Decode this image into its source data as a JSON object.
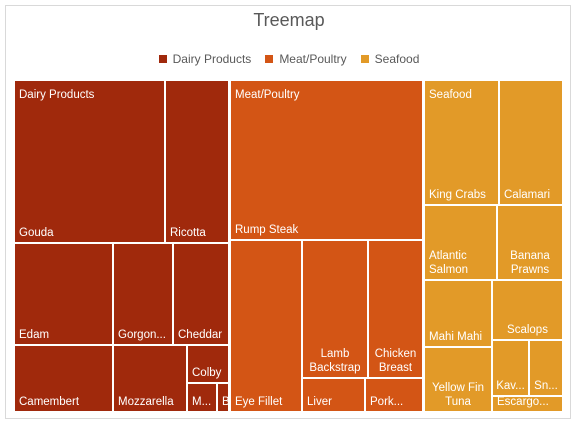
{
  "chart_data": {
    "type": "treemap",
    "title": "Treemap",
    "legend_position": "top",
    "groups": [
      {
        "name": "Dairy Products",
        "color": "#a0290c",
        "items": [
          {
            "name": "Gouda",
            "value": 34
          },
          {
            "name": "Ricotta",
            "value": 14
          },
          {
            "name": "Edam",
            "value": 12
          },
          {
            "name": "Gorgon...",
            "value": 7
          },
          {
            "name": "Cheddar",
            "value": 6.5
          },
          {
            "name": "Camembert",
            "value": 8
          },
          {
            "name": "Mozzarella",
            "value": 5
          },
          {
            "name": "Colby",
            "value": 2
          },
          {
            "name": "M...",
            "value": 1
          },
          {
            "name": "B...",
            "value": 0.4
          }
        ]
      },
      {
        "name": "Meat/Poultry",
        "color": "#d35515",
        "items": [
          {
            "name": "Rump Steak",
            "value": 44
          },
          {
            "name": "Eye Fillet",
            "value": 19
          },
          {
            "name": "Lamb Backstrap",
            "value": 11
          },
          {
            "name": "Chicken Breast",
            "value": 8.5
          },
          {
            "name": "Liver",
            "value": 3.8
          },
          {
            "name": "Pork...",
            "value": 3
          }
        ]
      },
      {
        "name": "Seafood",
        "color": "#e29a28",
        "items": [
          {
            "name": "King Crabs",
            "value": 10
          },
          {
            "name": "Calamari",
            "value": 8
          },
          {
            "name": "Atlantic Salmon",
            "value": 6.5
          },
          {
            "name": "Banana Prawns",
            "value": 5.5
          },
          {
            "name": "Mahi Mahi",
            "value": 5.5
          },
          {
            "name": "Scalops",
            "value": 4.5
          },
          {
            "name": "Yellow Fin Tuna",
            "value": 5.5
          },
          {
            "name": "Kav...",
            "value": 1.8
          },
          {
            "name": "Sn...",
            "value": 1.5
          },
          {
            "name": "Escargo...",
            "value": 1.2
          }
        ]
      }
    ]
  }
}
